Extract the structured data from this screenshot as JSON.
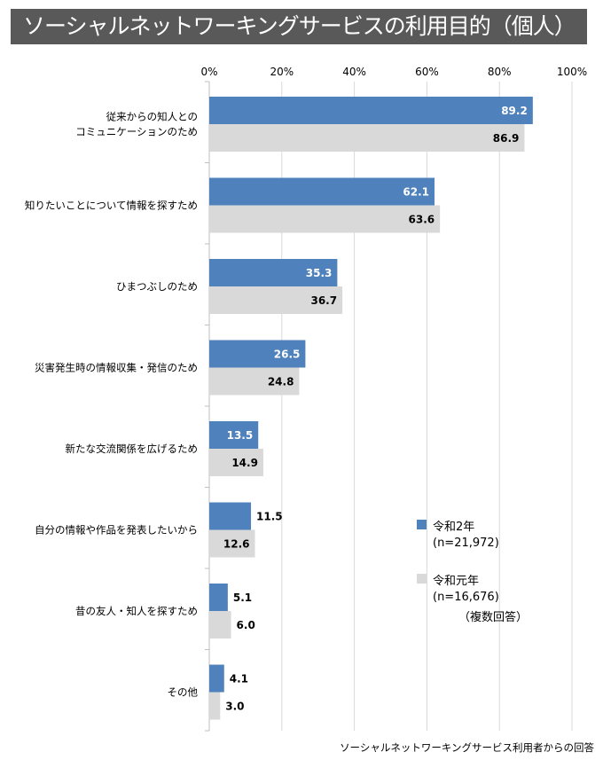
{
  "title": "ソーシャルネットワーキングサービスの利用目的（個人）",
  "source": "ソーシャルネットワーキングサービス利用者からの回答",
  "legend": {
    "note": "（複数回答）",
    "items": [
      {
        "label": "令和2年",
        "n": "(n=21,972)"
      },
      {
        "label": "令和元年",
        "n": "(n=16,676)"
      }
    ]
  },
  "chart_data": {
    "type": "bar",
    "orientation": "horizontal",
    "xlim": [
      0,
      100
    ],
    "ticks": [
      "0%",
      "20%",
      "40%",
      "60%",
      "80%",
      "100%"
    ],
    "tick_values": [
      0,
      20,
      40,
      60,
      80,
      100
    ],
    "grid": true,
    "legend_position": "right",
    "categories": [
      [
        "従来からの知人との",
        "コミュニケーションのため"
      ],
      [
        "知りたいことについて情報を探すため"
      ],
      [
        "ひまつぶしのため"
      ],
      [
        "災害発生時の情報収集・発信のため"
      ],
      [
        "新たな交流関係を広げるため"
      ],
      [
        "自分の情報や作品を発表したいから"
      ],
      [
        "昔の友人・知人を探すため"
      ],
      [
        "その他"
      ]
    ],
    "series": [
      {
        "name": "令和2年",
        "color": "#4f81bd",
        "values": [
          89.2,
          62.1,
          35.3,
          26.5,
          13.5,
          11.5,
          5.1,
          4.1
        ]
      },
      {
        "name": "令和元年",
        "color": "#d9d9d9",
        "values": [
          86.9,
          63.6,
          36.7,
          24.8,
          14.9,
          12.6,
          6.0,
          3.0
        ]
      }
    ]
  }
}
